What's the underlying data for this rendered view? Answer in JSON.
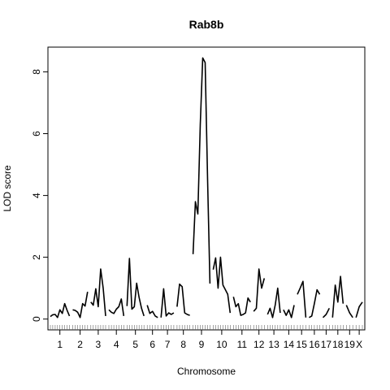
{
  "chart_data": {
    "type": "line",
    "title": "Rab8b",
    "xlabel": "Chromosome",
    "ylabel": "LOD score",
    "ylim": [
      -0.35,
      8.8
    ],
    "y_ticks": [
      0,
      2,
      4,
      6,
      8
    ],
    "grid": false,
    "legend": "none",
    "line_color": "#000000",
    "chromosomes": [
      {
        "label": "1",
        "lod": [
          0.08,
          0.14,
          0.15,
          0.05,
          0.3,
          0.18,
          0.5,
          0.28,
          0.1
        ]
      },
      {
        "label": "2",
        "lod": [
          0.3,
          0.28,
          0.22,
          0.05,
          0.5,
          0.42,
          0.88
        ]
      },
      {
        "label": "3",
        "lod": [
          0.55,
          0.45,
          0.98,
          0.4,
          1.62,
          1.0,
          0.1
        ]
      },
      {
        "label": "4",
        "lod": [
          0.3,
          0.22,
          0.18,
          0.32,
          0.4,
          0.65,
          0.1
        ]
      },
      {
        "label": "5",
        "lod": [
          0.42,
          1.96,
          0.32,
          0.4,
          1.16,
          0.7,
          0.35,
          0.1
        ]
      },
      {
        "label": "6",
        "lod": [
          0.45,
          0.18,
          0.25,
          0.1,
          0.05
        ]
      },
      {
        "label": "7",
        "lod": [
          0.05,
          0.98,
          0.1,
          0.2,
          0.15,
          0.2
        ]
      },
      {
        "label": "8",
        "lod": [
          0.4,
          1.13,
          1.05,
          0.2,
          0.15,
          0.12
        ]
      },
      {
        "label": "9",
        "lod": [
          2.1,
          3.8,
          3.4,
          6.3,
          8.45,
          8.3,
          4.5,
          1.15
        ]
      },
      {
        "label": "10",
        "lod": [
          1.6,
          1.98,
          1.0,
          2.0,
          1.1,
          0.95,
          0.8,
          0.2
        ]
      },
      {
        "label": "11",
        "lod": [
          0.72,
          0.4,
          0.5,
          0.12,
          0.15,
          0.2,
          0.68,
          0.55
        ]
      },
      {
        "label": "12",
        "lod": [
          0.25,
          0.35,
          1.62,
          1.0,
          1.32
        ]
      },
      {
        "label": "13",
        "lod": [
          0.15,
          0.35,
          0.05,
          0.45,
          1.0,
          0.2
        ]
      },
      {
        "label": "14",
        "lod": [
          0.3,
          0.12,
          0.3,
          0.05,
          0.45
        ]
      },
      {
        "label": "15",
        "lod": [
          0.8,
          1.0,
          1.22,
          0.05
        ]
      },
      {
        "label": "16",
        "lod": [
          0.05,
          0.1,
          0.5,
          0.95,
          0.8
        ]
      },
      {
        "label": "17",
        "lod": [
          0.05,
          0.15,
          0.35
        ]
      },
      {
        "label": "18",
        "lod": [
          0.05,
          1.1,
          0.55,
          1.38,
          0.5
        ]
      },
      {
        "label": "19",
        "lod": [
          0.45,
          0.2,
          0.05
        ]
      },
      {
        "label": "X",
        "lod": [
          0.05,
          0.4,
          0.55
        ]
      }
    ]
  }
}
